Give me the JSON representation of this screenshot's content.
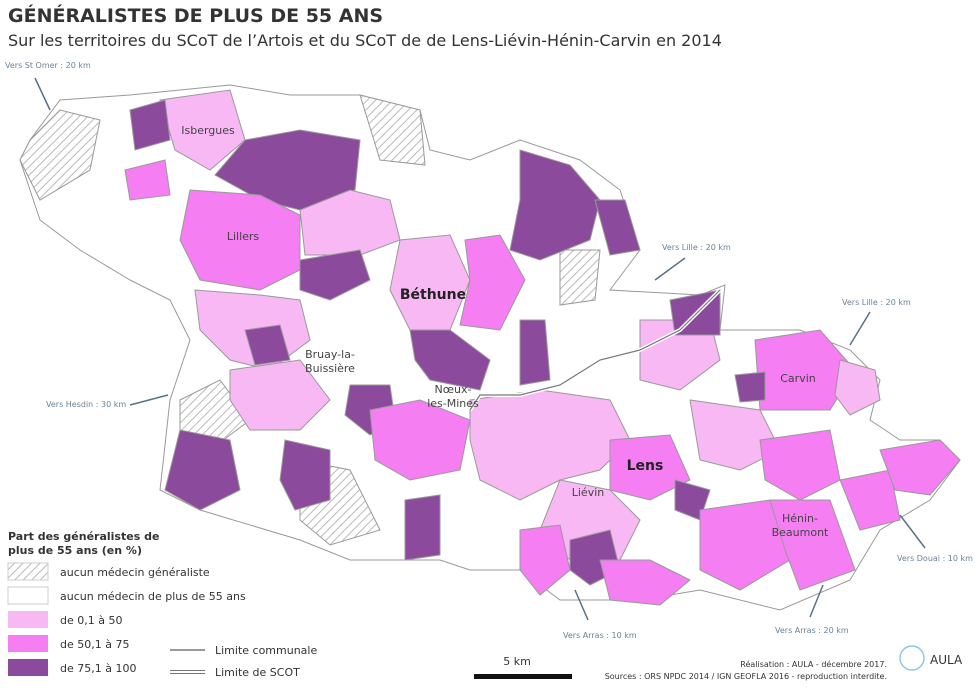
{
  "header": {
    "title": "GÉNÉRALISTES DE PLUS DE 55 ANS",
    "subtitle": "Sur les territoires du SCoT de l’Artois et du SCoT de de Lens-Liévin-Hénin-Carvin en 2014"
  },
  "directions": [
    "Vers St Omer : 20 km",
    "Vers Lille : 20 km",
    "Vers Lille : 20 km",
    "Vers Hesdin : 30 km",
    "Vers Douai : 10 km",
    "Vers Arras : 10 km",
    "Vers Arras : 20 km"
  ],
  "places": [
    {
      "lines": [
        "Isbergues"
      ]
    },
    {
      "lines": [
        "Lillers"
      ]
    },
    {
      "lines": [
        "Béthune"
      ]
    },
    {
      "lines": [
        "Bruay-la-",
        "Buissière"
      ]
    },
    {
      "lines": [
        "Nœux-",
        "les-Mines"
      ]
    },
    {
      "lines": [
        "Carvin"
      ]
    },
    {
      "lines": [
        "Lens"
      ]
    },
    {
      "lines": [
        "Liévin"
      ]
    },
    {
      "lines": [
        "Hénin-",
        "Beaumont"
      ]
    }
  ],
  "legend": {
    "title_lines": [
      "Part des généralistes de",
      "plus de 55 ans (en %)"
    ],
    "items": [
      "aucun médecin généraliste",
      "aucun médecin de plus de 55 ans",
      "de 0,1 à 50",
      "de 50,1 à 75",
      "de 75,1 à 100"
    ],
    "lines": [
      "Limite communale",
      "Limite de SCOT"
    ]
  },
  "scale": "5 km",
  "credits": [
    "Réalisation : AULA - décembre 2017.",
    "Sources : ORS NPDC 2014 / IGN GEOFLA 2016 - reproduction interdite."
  ],
  "logo": "AULA"
}
